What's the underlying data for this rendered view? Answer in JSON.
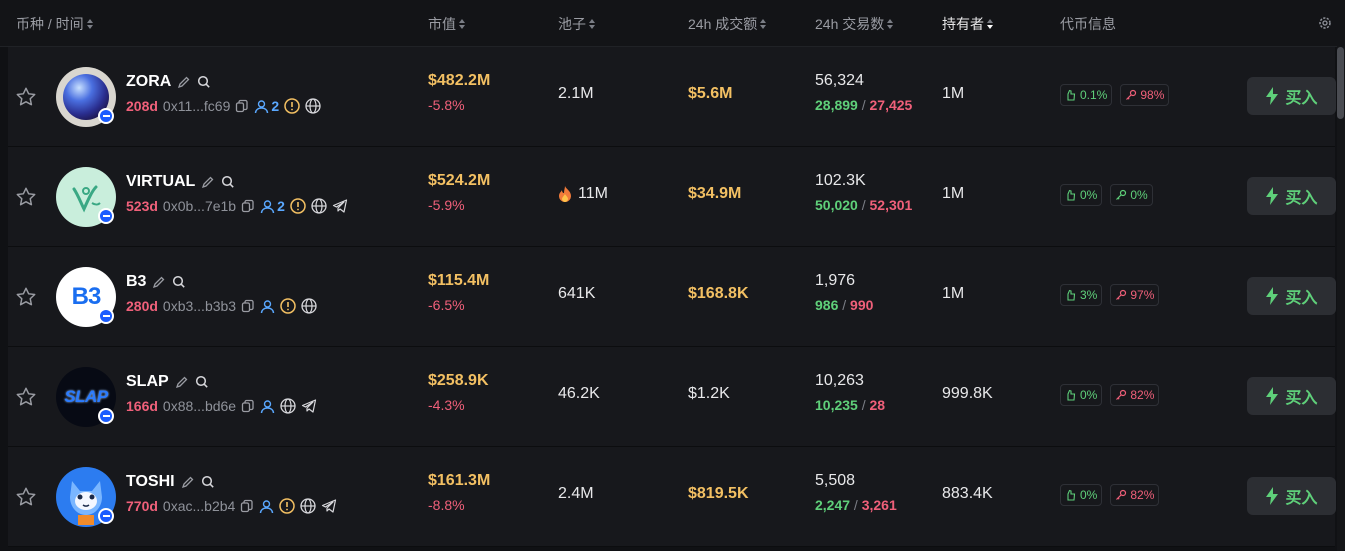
{
  "header": {
    "coin_time": "币种 / 时间",
    "mcap": "市值",
    "pool": "池子",
    "volume": "24h 成交额",
    "txns": "24h 交易数",
    "holders": "持有者",
    "token_info": "代币信息"
  },
  "rows": [
    {
      "name": "ZORA",
      "age": "208d",
      "address": "0x11...fc69",
      "holders_count": "2",
      "mcap": "$482.2M",
      "mcap_change": "-5.8%",
      "pool": "2.1M",
      "volume": "$5.6M",
      "txns": "56,324",
      "buys": "28,899",
      "sells": "27,425",
      "holders": "1M",
      "badge1": "0.1%",
      "badge2": "98%",
      "buy": "买入"
    },
    {
      "name": "VIRTUAL",
      "age": "523d",
      "address": "0x0b...7e1b",
      "holders_count": "2",
      "mcap": "$524.2M",
      "mcap_change": "-5.9%",
      "pool": "11M",
      "volume": "$34.9M",
      "txns": "102.3K",
      "buys": "50,020",
      "sells": "52,301",
      "holders": "1M",
      "badge1": "0%",
      "badge2": "0%",
      "buy": "买入"
    },
    {
      "name": "B3",
      "age": "280d",
      "address": "0xb3...b3b3",
      "mcap": "$115.4M",
      "mcap_change": "-6.5%",
      "pool": "641K",
      "volume": "$168.8K",
      "txns": "1,976",
      "buys": "986",
      "sells": "990",
      "holders": "1M",
      "badge1": "3%",
      "badge2": "97%",
      "buy": "买入"
    },
    {
      "name": "SLAP",
      "age": "166d",
      "address": "0x88...bd6e",
      "mcap": "$258.9K",
      "mcap_change": "-4.3%",
      "pool": "46.2K",
      "volume": "$1.2K",
      "txns": "10,263",
      "buys": "10,235",
      "sells": "28",
      "holders": "999.8K",
      "badge1": "0%",
      "badge2": "82%",
      "buy": "买入"
    },
    {
      "name": "TOSHI",
      "age": "770d",
      "address": "0xac...b2b4",
      "mcap": "$161.3M",
      "mcap_change": "-8.8%",
      "pool": "2.4M",
      "volume": "$819.5K",
      "txns": "5,508",
      "buys": "2,247",
      "sells": "3,261",
      "holders": "883.4K",
      "badge1": "0%",
      "badge2": "82%",
      "buy": "买入"
    }
  ],
  "logos": {
    "b3": "B3",
    "slap": "SLAP"
  },
  "colors": {
    "accent_gold": "#f3c063",
    "negative": "#f0607a",
    "positive": "#5fd07a",
    "link_blue": "#5aa8ff"
  }
}
